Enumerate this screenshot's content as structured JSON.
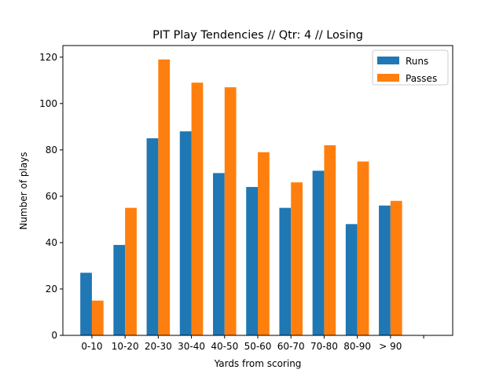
{
  "chart_data": {
    "type": "bar",
    "title": "PIT Play Tendencies // Qtr: 4 // Losing",
    "x_label": "Yards from scoring",
    "y_label": "Number of plays",
    "categories": [
      "0-10",
      "10-20",
      "20-30",
      "30-40",
      "40-50",
      "50-60",
      "60-70",
      "70-80",
      "80-90",
      "> 90",
      null
    ],
    "series": [
      {
        "name": "Runs",
        "color": "#1f77b4",
        "values": [
          27,
          39,
          85,
          88,
          70,
          64,
          55,
          71,
          48,
          56,
          null
        ]
      },
      {
        "name": "Passes",
        "color": "#ff7f0e",
        "values": [
          15,
          55,
          119,
          109,
          107,
          79,
          66,
          82,
          75,
          58,
          null
        ]
      }
    ],
    "ylim": [
      0,
      125
    ],
    "yticks": [
      0,
      20,
      40,
      60,
      80,
      100,
      120
    ],
    "legend": "upper right"
  }
}
